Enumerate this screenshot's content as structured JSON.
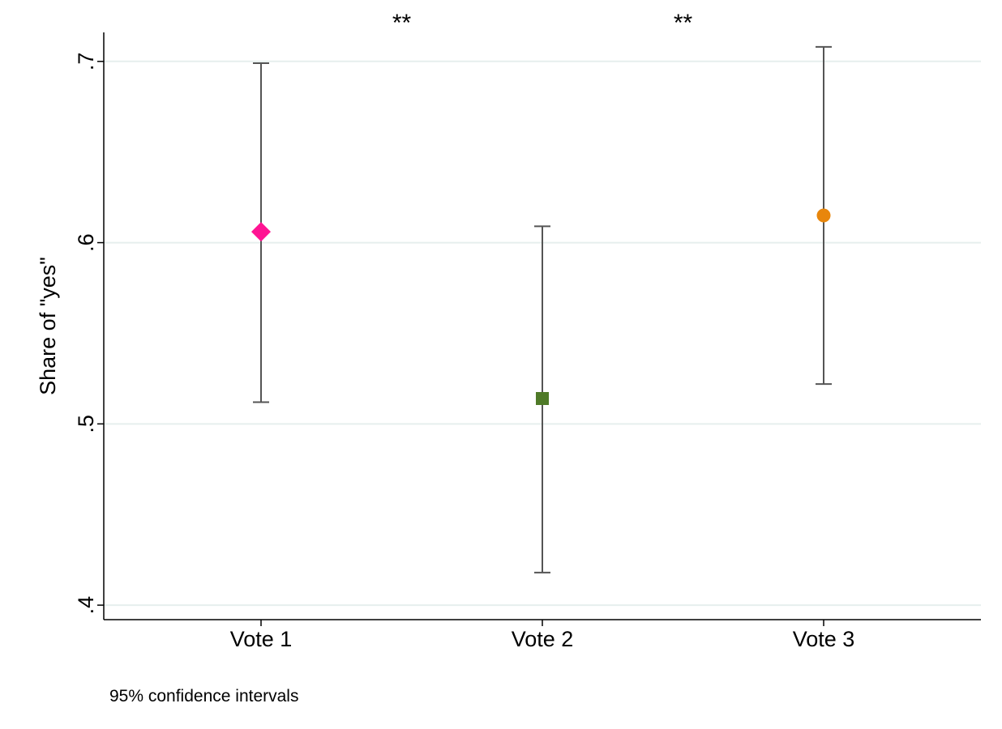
{
  "chart_data": {
    "type": "scatter",
    "title": "",
    "xlabel": "",
    "ylabel": "Share of \"yes\"",
    "ylim": [
      0.392,
      0.716
    ],
    "yticks": [
      {
        "value": 0.4,
        "label": ".4"
      },
      {
        "value": 0.5,
        "label": ".5"
      },
      {
        "value": 0.6,
        "label": ".6"
      },
      {
        "value": 0.7,
        "label": ".7"
      }
    ],
    "grid": true,
    "categories": [
      "Vote 1",
      "Vote 2",
      "Vote 3"
    ],
    "points": [
      {
        "category": "Vote 1",
        "estimate": 0.606,
        "ci_low": 0.512,
        "ci_high": 0.699,
        "marker": "diamond",
        "color": "#ff1493"
      },
      {
        "category": "Vote 2",
        "estimate": 0.514,
        "ci_low": 0.418,
        "ci_high": 0.609,
        "marker": "square",
        "color": "#4f7a28"
      },
      {
        "category": "Vote 3",
        "estimate": 0.615,
        "ci_low": 0.522,
        "ci_high": 0.708,
        "marker": "circle",
        "color": "#e8860c"
      }
    ],
    "significance": [
      {
        "between": [
          "Vote 1",
          "Vote 2"
        ],
        "label": "**"
      },
      {
        "between": [
          "Vote 2",
          "Vote 3"
        ],
        "label": "**"
      }
    ],
    "note": "95% confidence intervals",
    "colors": {
      "grid": "#e6efee",
      "axis": "#000000",
      "ci": "#555555"
    }
  }
}
